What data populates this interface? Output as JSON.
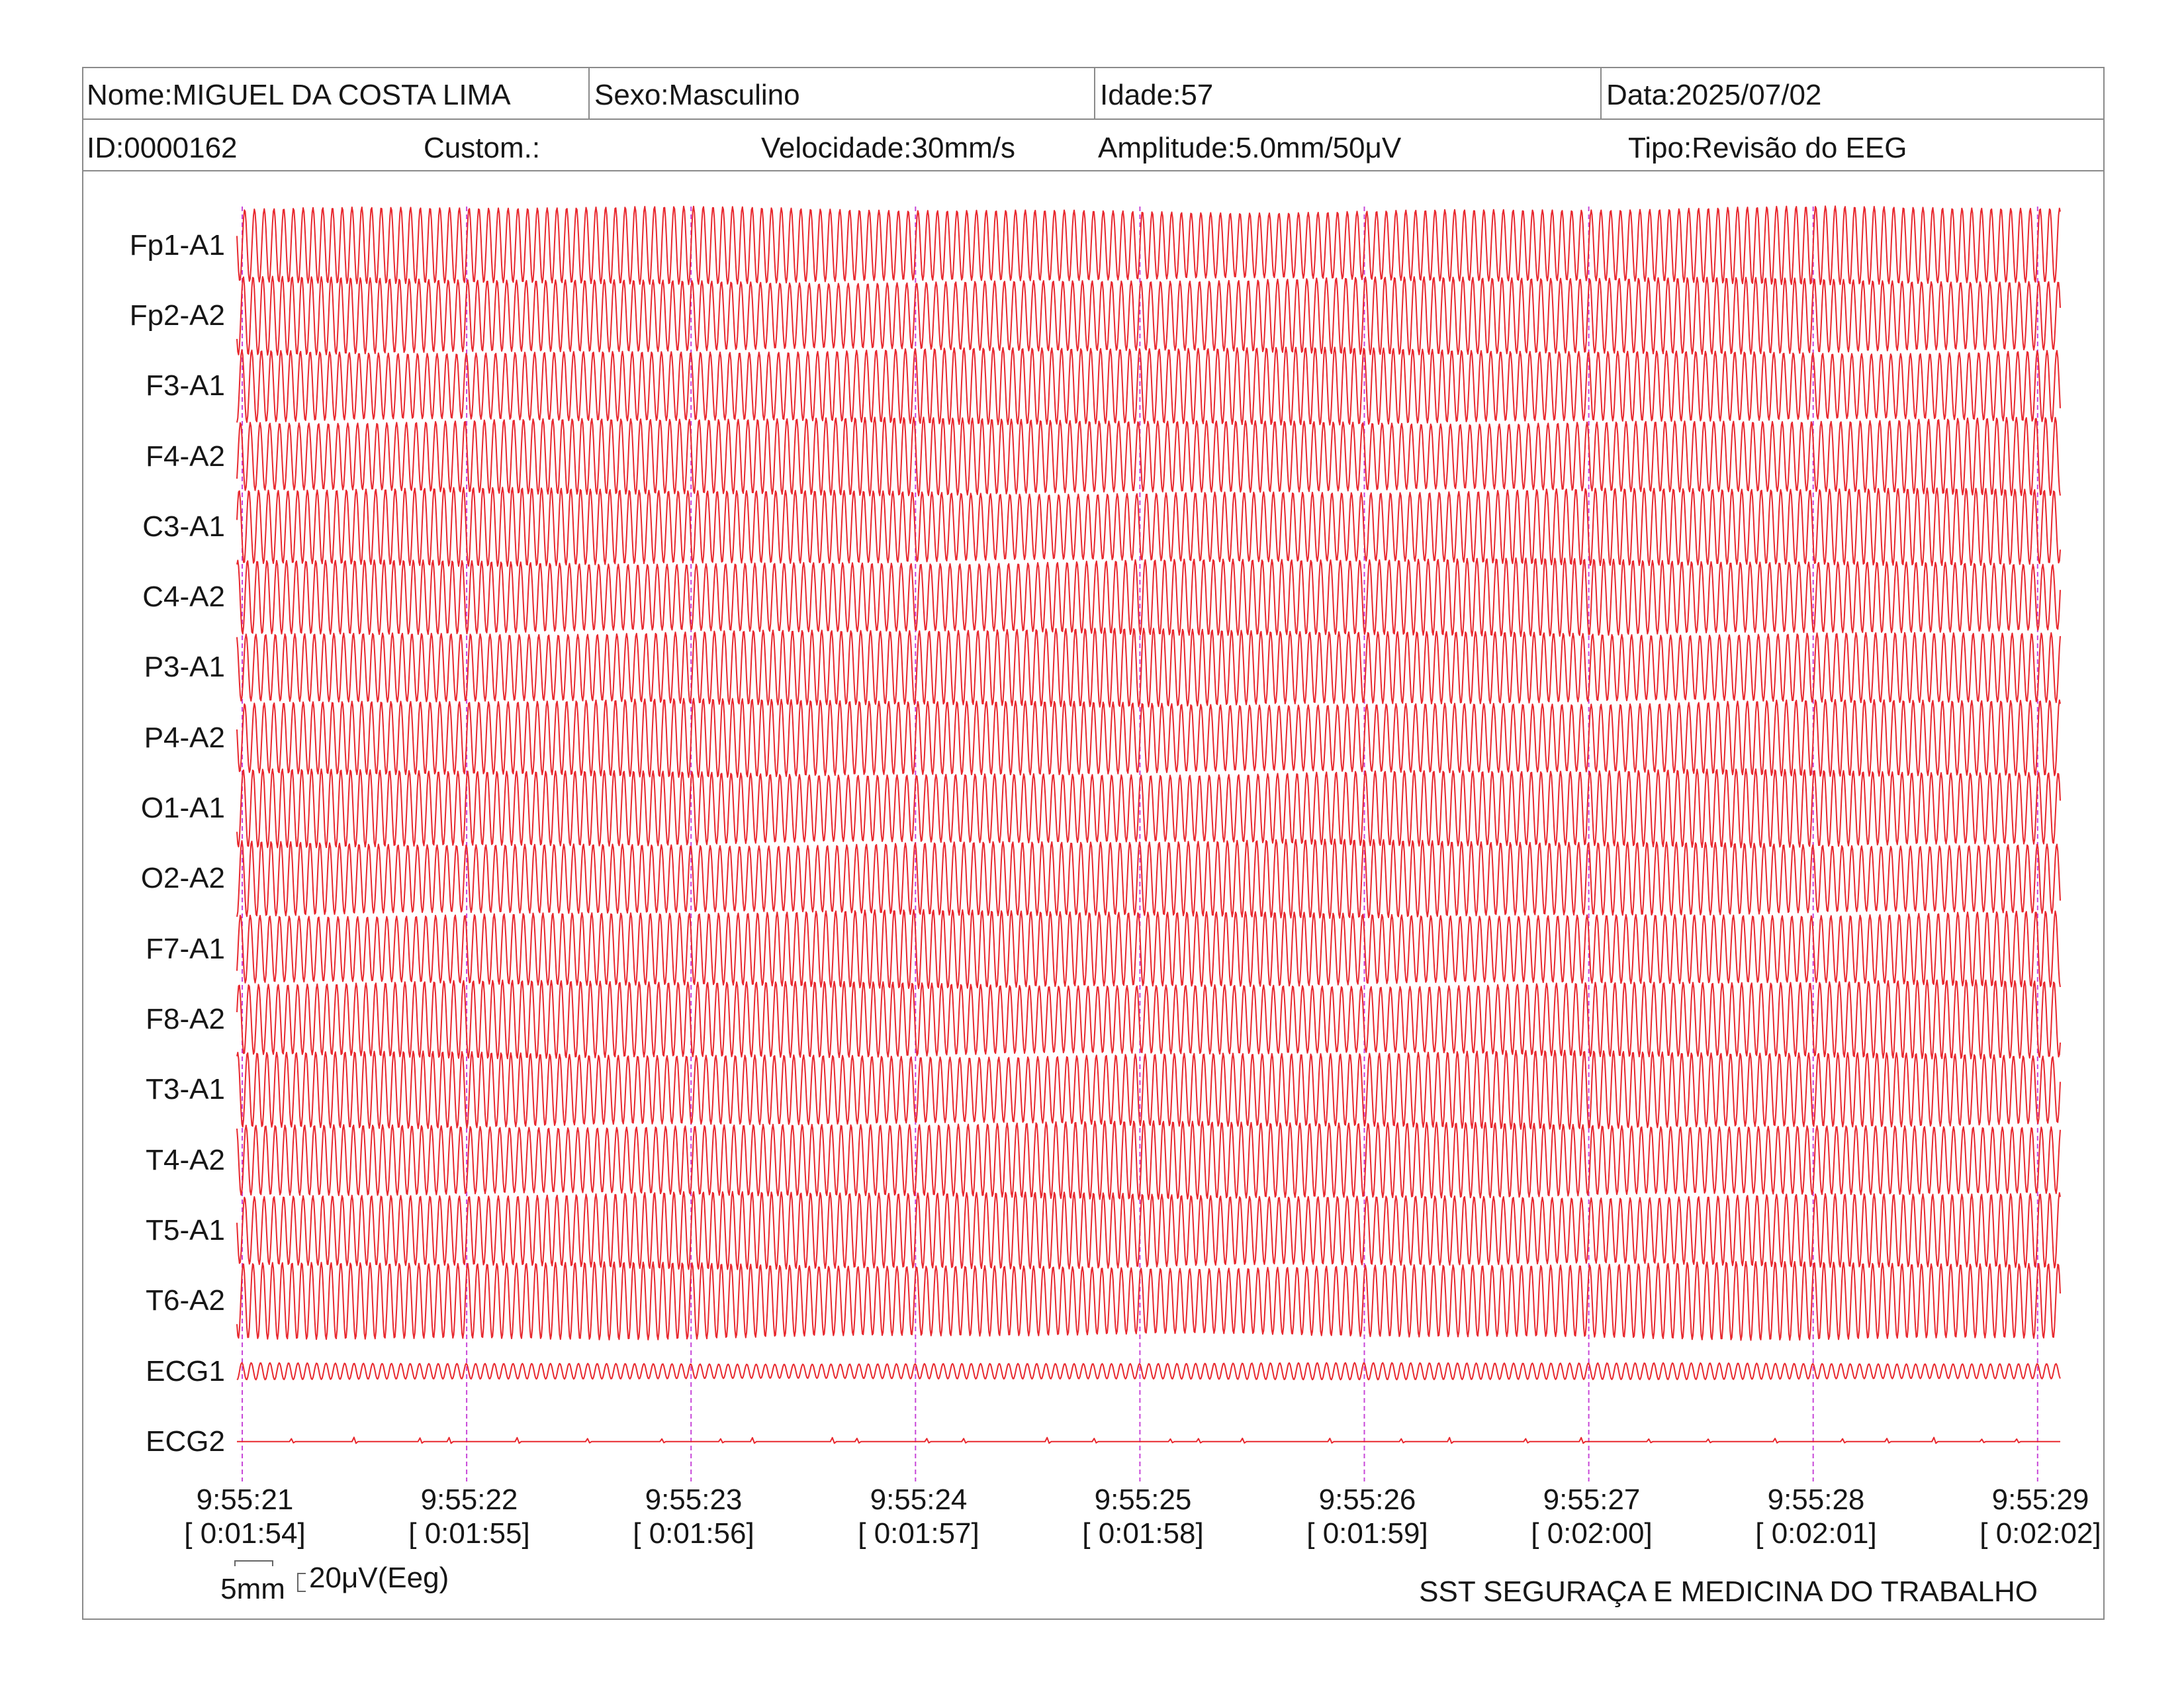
{
  "header": {
    "name": "Nome:MIGUEL DA COSTA LIMA",
    "sex": "Sexo:Masculino",
    "age": "Idade:57",
    "date": "Data:2025/07/02",
    "id": "ID:0000162",
    "custom": "Custom.:",
    "speed": "Velocidade:30mm/s",
    "amplitude": "Amplitude:5.0mm/50μV",
    "type": "Tipo:Revisão do EEG"
  },
  "chart_data": {
    "type": "line",
    "x_ticks": [
      {
        "time": "9:55:21",
        "elapsed": "[ 0:01:54]"
      },
      {
        "time": "9:55:22",
        "elapsed": "[ 0:01:55]"
      },
      {
        "time": "9:55:23",
        "elapsed": "[ 0:01:56]"
      },
      {
        "time": "9:55:24",
        "elapsed": "[ 0:01:57]"
      },
      {
        "time": "9:55:25",
        "elapsed": "[ 0:01:58]"
      },
      {
        "time": "9:55:26",
        "elapsed": "[ 0:01:59]"
      },
      {
        "time": "9:55:27",
        "elapsed": "[ 0:02:00]"
      },
      {
        "time": "9:55:28",
        "elapsed": "[ 0:02:01]"
      },
      {
        "time": "9:55:29",
        "elapsed": "[ 0:02:02]"
      }
    ],
    "series": [
      {
        "name": "Fp1-A1",
        "amplitude_uV": 46,
        "frequency_hz": 23
      },
      {
        "name": "Fp2-A2",
        "amplitude_uV": 46,
        "frequency_hz": 23
      },
      {
        "name": "F3-A1",
        "amplitude_uV": 46,
        "frequency_hz": 23
      },
      {
        "name": "F4-A2",
        "amplitude_uV": 46,
        "frequency_hz": 23
      },
      {
        "name": "C3-A1",
        "amplitude_uV": 46,
        "frequency_hz": 23
      },
      {
        "name": "C4-A2",
        "amplitude_uV": 46,
        "frequency_hz": 23
      },
      {
        "name": "P3-A1",
        "amplitude_uV": 46,
        "frequency_hz": 23
      },
      {
        "name": "P4-A2",
        "amplitude_uV": 46,
        "frequency_hz": 23
      },
      {
        "name": "O1-A1",
        "amplitude_uV": 46,
        "frequency_hz": 23
      },
      {
        "name": "O2-A2",
        "amplitude_uV": 46,
        "frequency_hz": 23
      },
      {
        "name": "F7-A1",
        "amplitude_uV": 46,
        "frequency_hz": 23
      },
      {
        "name": "F8-A2",
        "amplitude_uV": 46,
        "frequency_hz": 23
      },
      {
        "name": "T3-A1",
        "amplitude_uV": 46,
        "frequency_hz": 23
      },
      {
        "name": "T4-A2",
        "amplitude_uV": 46,
        "frequency_hz": 23
      },
      {
        "name": "T5-A1",
        "amplitude_uV": 46,
        "frequency_hz": 23
      },
      {
        "name": "T6-A2",
        "amplitude_uV": 46,
        "frequency_hz": 23
      },
      {
        "name": "ECG1",
        "amplitude_uV": 10,
        "frequency_hz": 24
      },
      {
        "name": "ECG2",
        "amplitude_uV": 5,
        "frequency_hz": null
      }
    ]
  },
  "calibration": {
    "time_label": "5mm",
    "amplitude_label": "20μV(Eeg)"
  },
  "footer": {
    "organization": "SST SEGURAÇA E MEDICINA DO TRABALHO"
  },
  "colors": {
    "trace": "#e8282e",
    "time_marker": "#c847d8",
    "border": "#8a8a8a"
  }
}
